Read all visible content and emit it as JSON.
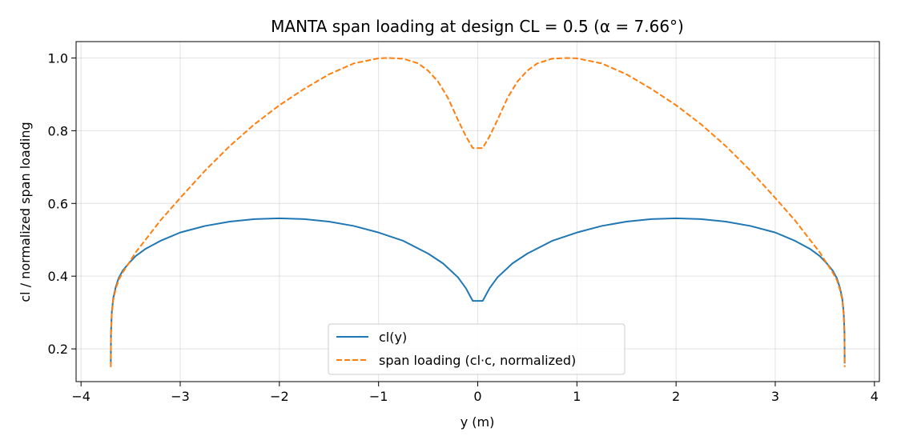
{
  "chart_data": {
    "type": "line",
    "title": "MANTA span loading at design CL = 0.5 (α = 7.66°)",
    "xlabel": "y (m)",
    "ylabel": "cl  /  normalized span loading",
    "xlim": [
      -4.05,
      4.05
    ],
    "ylim": [
      0.11,
      1.045
    ],
    "xticks": [
      -4,
      -3,
      -2,
      -1,
      0,
      1,
      2,
      3,
      4
    ],
    "xtick_labels": [
      "−4",
      "−3",
      "−2",
      "−1",
      "0",
      "1",
      "2",
      "3",
      "4"
    ],
    "yticks": [
      0.2,
      0.4,
      0.6,
      0.8,
      1.0
    ],
    "ytick_labels": [
      "0.2",
      "0.4",
      "0.6",
      "0.8",
      "1.0"
    ],
    "grid": true,
    "legend_position": "bottom-center",
    "series": [
      {
        "name": "cl(y)",
        "color": "#1f77b4",
        "dash": "solid",
        "x": [
          -3.7,
          -3.698,
          -3.69,
          -3.675,
          -3.65,
          -3.62,
          -3.58,
          -3.52,
          -3.45,
          -3.35,
          -3.2,
          -3.0,
          -2.75,
          -2.5,
          -2.25,
          -2.0,
          -1.75,
          -1.5,
          -1.25,
          -1.0,
          -0.75,
          -0.5,
          -0.35,
          -0.2,
          -0.12,
          -0.05,
          0.05,
          0.12,
          0.2,
          0.35,
          0.5,
          0.75,
          1.0,
          1.25,
          1.5,
          1.75,
          2.0,
          2.25,
          2.5,
          2.75,
          3.0,
          3.2,
          3.35,
          3.45,
          3.52,
          3.58,
          3.62,
          3.65,
          3.675,
          3.69,
          3.698,
          3.7
        ],
        "y": [
          0.16,
          0.245,
          0.3,
          0.34,
          0.37,
          0.395,
          0.415,
          0.435,
          0.455,
          0.475,
          0.497,
          0.52,
          0.538,
          0.55,
          0.557,
          0.559,
          0.557,
          0.55,
          0.538,
          0.52,
          0.497,
          0.462,
          0.435,
          0.397,
          0.367,
          0.332,
          0.332,
          0.367,
          0.397,
          0.435,
          0.462,
          0.497,
          0.52,
          0.538,
          0.55,
          0.557,
          0.559,
          0.557,
          0.55,
          0.538,
          0.52,
          0.497,
          0.475,
          0.455,
          0.435,
          0.415,
          0.395,
          0.37,
          0.34,
          0.3,
          0.245,
          0.16
        ]
      },
      {
        "name": "span loading (cl·c, normalized)",
        "color": "#ff7f0e",
        "dash": "dashed",
        "x": [
          -3.7,
          -3.698,
          -3.69,
          -3.675,
          -3.65,
          -3.62,
          -3.58,
          -3.52,
          -3.45,
          -3.35,
          -3.2,
          -3.0,
          -2.75,
          -2.5,
          -2.25,
          -2.0,
          -1.75,
          -1.5,
          -1.25,
          -1.0,
          -0.9,
          -0.75,
          -0.6,
          -0.5,
          -0.4,
          -0.3,
          -0.2,
          -0.12,
          -0.05,
          0.05,
          0.12,
          0.2,
          0.3,
          0.4,
          0.5,
          0.6,
          0.75,
          0.9,
          1.0,
          1.25,
          1.5,
          1.75,
          2.0,
          2.25,
          2.5,
          2.75,
          3.0,
          3.2,
          3.35,
          3.45,
          3.52,
          3.58,
          3.62,
          3.65,
          3.675,
          3.69,
          3.698,
          3.7
        ],
        "y": [
          0.15,
          0.24,
          0.295,
          0.335,
          0.365,
          0.39,
          0.41,
          0.435,
          0.465,
          0.5,
          0.553,
          0.615,
          0.69,
          0.758,
          0.818,
          0.87,
          0.915,
          0.955,
          0.985,
          0.999,
          1.0,
          0.998,
          0.985,
          0.965,
          0.935,
          0.89,
          0.83,
          0.785,
          0.752,
          0.752,
          0.785,
          0.83,
          0.89,
          0.935,
          0.965,
          0.985,
          0.998,
          1.0,
          0.999,
          0.985,
          0.955,
          0.915,
          0.87,
          0.818,
          0.758,
          0.69,
          0.615,
          0.553,
          0.5,
          0.465,
          0.435,
          0.41,
          0.39,
          0.365,
          0.335,
          0.295,
          0.24,
          0.15
        ]
      }
    ]
  }
}
